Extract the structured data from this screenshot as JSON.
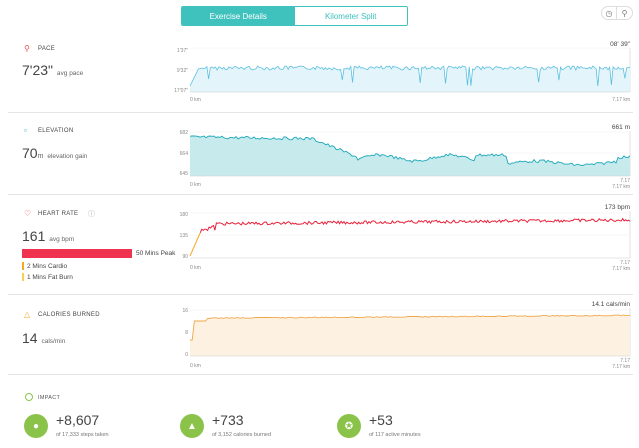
{
  "tabs": [
    {
      "label": "Exercise Details",
      "active": true
    },
    {
      "label": "Kilometer Split",
      "active": false
    }
  ],
  "corner_icons": [
    "clock-icon",
    "map-pin-icon"
  ],
  "sections": {
    "pace": {
      "title": "PACE",
      "value": "7'23\"",
      "unit": "",
      "desc": "avg pace",
      "peak": "08' 39\"",
      "icon_color": "#e5534b",
      "y_ticks": [
        "1'37\"",
        "9'32\"",
        "17'07\""
      ],
      "x_start": "0 km",
      "x_end": "7.17 km"
    },
    "elevation": {
      "title": "ELEVATION",
      "value": "70",
      "unit": "m",
      "desc": "elevation gain",
      "peak": "661 m",
      "icon_color": "#1aa7b8",
      "y_ticks": [
        "682",
        "664",
        "645"
      ],
      "x_start": "0 km",
      "x_end_top": "7.17",
      "x_end": "7.17 km"
    },
    "heart_rate": {
      "title": "HEART RATE",
      "value": "161",
      "unit": "",
      "desc": "avg bpm",
      "peak": "173 bpm",
      "icon_color": "#e5534b",
      "y_ticks": [
        "180",
        "135",
        "90"
      ],
      "x_start": "0 km",
      "x_end_top": "7.17",
      "x_end": "7.17 km",
      "zones": [
        {
          "label": "50 Mins Peak",
          "color": "#f0334f",
          "value": 50
        },
        {
          "label": "2 Mins Cardio",
          "color": "#f5a623",
          "value": 2
        },
        {
          "label": "1 Mins Fat Burn",
          "color": "#f8d04b",
          "value": 1
        }
      ]
    },
    "calories": {
      "title": "CALORIES BURNED",
      "value": "14",
      "unit": "",
      "desc": "cals/min",
      "peak": "14.1 cals/min",
      "icon_color": "#f5a623",
      "y_ticks": [
        "16",
        "8",
        "0"
      ],
      "x_start": "0 km",
      "x_end_top": "7.17",
      "x_end": "7.17 km"
    }
  },
  "impact": {
    "title": "IMPACT",
    "items": [
      {
        "value": "+8,607",
        "sub": "of 17,333 steps taken",
        "color": "#8bc34a",
        "icon": "footsteps-icon",
        "glyph": "👣"
      },
      {
        "value": "+733",
        "sub": "of 3,152 calories burned",
        "color": "#8bc34a",
        "icon": "flame-icon",
        "glyph": "🔥"
      },
      {
        "value": "+53",
        "sub": "of 117 active minutes",
        "color": "#8bc34a",
        "icon": "runner-icon",
        "glyph": "🏃"
      }
    ]
  },
  "chart_data": [
    {
      "type": "line",
      "title": "PACE",
      "ylim": [
        "17'07\"",
        "1'37\""
      ],
      "x_range": [
        "0 km",
        "7.17 km"
      ],
      "series": [
        {
          "name": "",
          "color": "#5bc0de"
        }
      ]
    },
    {
      "type": "area",
      "title": "ELEVATION",
      "ylim": [
        645,
        682
      ],
      "x_range": [
        "0 km",
        "7.17 km"
      ],
      "series": [
        {
          "name": "",
          "color": "#1aa7b8"
        }
      ]
    },
    {
      "type": "line",
      "title": "HEART RATE",
      "ylim": [
        90,
        180
      ],
      "x_range": [
        "0 km",
        "7.17 km"
      ],
      "series": [
        {
          "name": "",
          "color": "#e8213a"
        }
      ]
    },
    {
      "type": "area",
      "title": "CALORIES BURNED",
      "ylim": [
        0,
        16
      ],
      "x_range": [
        "0 km",
        "7.17 km"
      ],
      "series": [
        {
          "name": "",
          "color": "#f0a64a"
        }
      ]
    }
  ]
}
